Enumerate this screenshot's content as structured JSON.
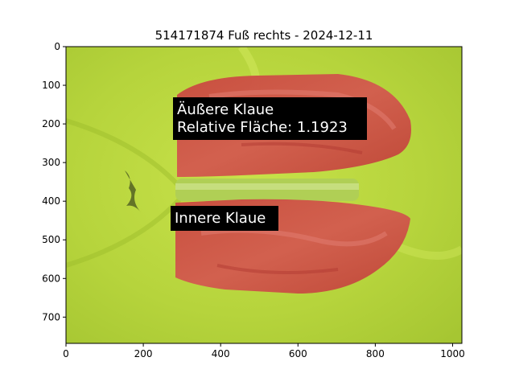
{
  "figure": {
    "title": "514171874 Fuß rechts - 2024-12-11"
  },
  "image_axes": {
    "x_ticks": [
      0,
      200,
      400,
      600,
      800,
      1000
    ],
    "y_ticks": [
      0,
      100,
      200,
      300,
      400,
      500,
      600,
      700
    ],
    "x_range": [
      0,
      1024
    ],
    "y_range": [
      768,
      0
    ]
  },
  "annotations": [
    {
      "lines": [
        "Äußere Klaue",
        "Relative Fläche: 1.1923"
      ]
    },
    {
      "lines": [
        "Innere Klaue"
      ]
    }
  ],
  "colors": {
    "background_green": "#b4d43a",
    "claw_overlay_red": "#d0544a",
    "label_box": "#000000"
  }
}
